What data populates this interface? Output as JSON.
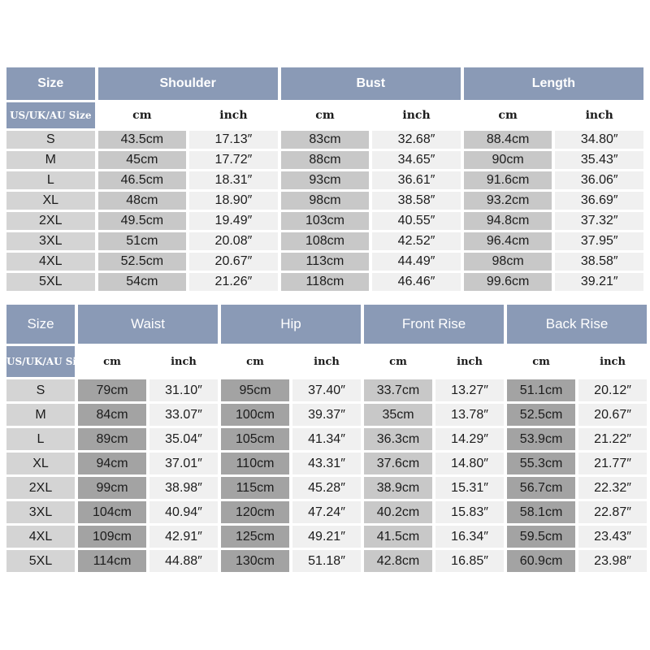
{
  "top_table": {
    "size_header": "Size",
    "region_label": "US/UK/AU Size",
    "measures": [
      "Shoulder",
      "Bust",
      "Length"
    ],
    "unit_labels": [
      "cm",
      "inch"
    ],
    "rows": [
      [
        "S",
        "43.5cm",
        "17.13″",
        "83cm",
        "32.68″",
        "88.4cm",
        "34.80″"
      ],
      [
        "M",
        "45cm",
        "17.72″",
        "88cm",
        "34.65″",
        "90cm",
        "35.43″"
      ],
      [
        "L",
        "46.5cm",
        "18.31″",
        "93cm",
        "36.61″",
        "91.6cm",
        "36.06″"
      ],
      [
        "XL",
        "48cm",
        "18.90″",
        "98cm",
        "38.58″",
        "93.2cm",
        "36.69″"
      ],
      [
        "2XL",
        "49.5cm",
        "19.49″",
        "103cm",
        "40.55″",
        "94.8cm",
        "37.32″"
      ],
      [
        "3XL",
        "51cm",
        "20.08″",
        "108cm",
        "42.52″",
        "96.4cm",
        "37.95″"
      ],
      [
        "4XL",
        "52.5cm",
        "20.67″",
        "113cm",
        "44.49″",
        "98cm",
        "38.58″"
      ],
      [
        "5XL",
        "54cm",
        "21.26″",
        "118cm",
        "46.46″",
        "99.6cm",
        "39.21″"
      ]
    ]
  },
  "bottom_table": {
    "size_header": "Size",
    "region_label": "US/UK/AU Size",
    "measures": [
      "Waist",
      "Hip",
      "Front Rise",
      "Back Rise"
    ],
    "unit_labels": [
      "cm",
      "inch"
    ],
    "rows": [
      [
        "S",
        "79cm",
        "31.10″",
        "95cm",
        "37.40″",
        "33.7cm",
        "13.27″",
        "51.1cm",
        "20.12″"
      ],
      [
        "M",
        "84cm",
        "33.07″",
        "100cm",
        "39.37″",
        "35cm",
        "13.78″",
        "52.5cm",
        "20.67″"
      ],
      [
        "L",
        "89cm",
        "35.04″",
        "105cm",
        "41.34″",
        "36.3cm",
        "14.29″",
        "53.9cm",
        "21.22″"
      ],
      [
        "XL",
        "94cm",
        "37.01″",
        "110cm",
        "43.31″",
        "37.6cm",
        "14.80″",
        "55.3cm",
        "21.77″"
      ],
      [
        "2XL",
        "99cm",
        "38.98″",
        "115cm",
        "45.28″",
        "38.9cm",
        "15.31″",
        "56.7cm",
        "22.32″"
      ],
      [
        "3XL",
        "104cm",
        "40.94″",
        "120cm",
        "47.24″",
        "40.2cm",
        "15.83″",
        "58.1cm",
        "22.87″"
      ],
      [
        "4XL",
        "109cm",
        "42.91″",
        "125cm",
        "49.21″",
        "41.5cm",
        "16.34″",
        "59.5cm",
        "23.43″"
      ],
      [
        "5XL",
        "114cm",
        "44.88″",
        "130cm",
        "51.18″",
        "42.8cm",
        "16.85″",
        "60.9cm",
        "23.98″"
      ]
    ]
  },
  "colors": {
    "header_blue": "#8a9ab6",
    "size_cell_gray": "#d4d4d4",
    "cm_cell_gray": "#c8c8c8",
    "cm_cell_dark": "#a3a3a3",
    "inch_cell_light": "#f0f0f0"
  }
}
